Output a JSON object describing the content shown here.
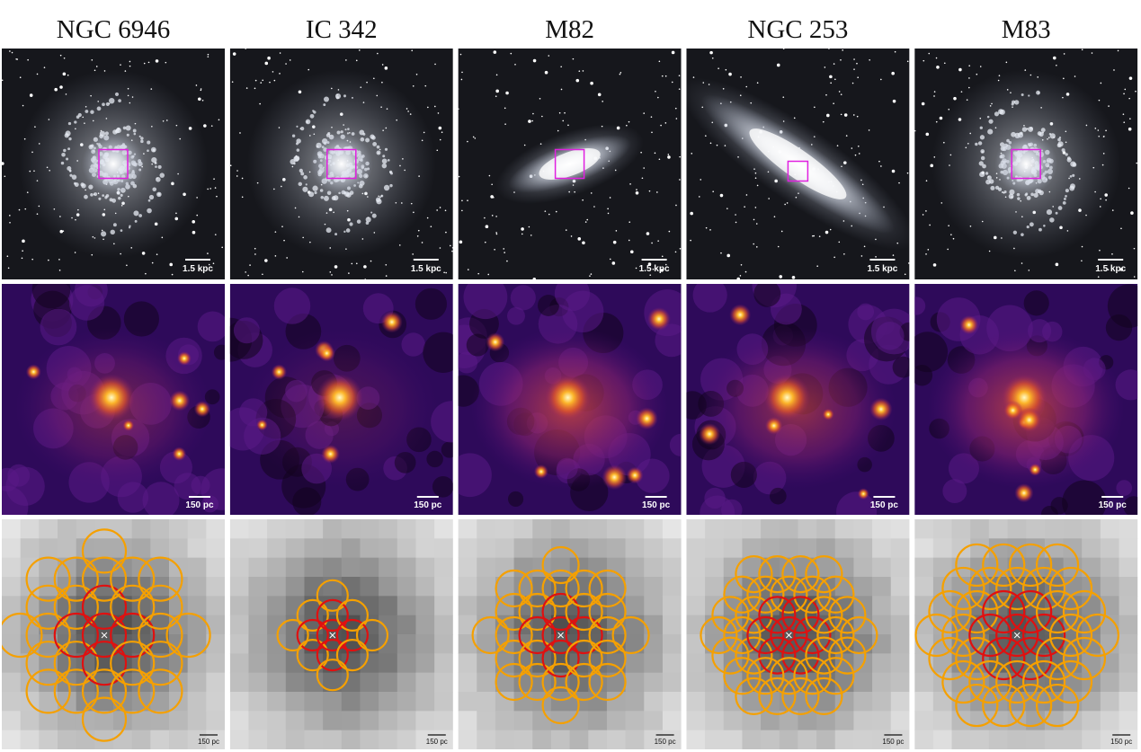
{
  "panels": [
    {
      "name": "NGC 6946",
      "optical_scale": "1.5 kpc",
      "map_scale": "150 pc",
      "grid_scale": "150 pc"
    },
    {
      "name": "IC 342",
      "optical_scale": "1.5 kpc",
      "map_scale": "150 pc",
      "grid_scale": "150 pc"
    },
    {
      "name": "M82",
      "optical_scale": "1.5 kpc",
      "map_scale": "150 pc",
      "grid_scale": "150 pc"
    },
    {
      "name": "NGC 253",
      "optical_scale": "1.5 kpc",
      "map_scale": "150 pc",
      "grid_scale": "150 pc"
    },
    {
      "name": "M83",
      "optical_scale": "1.5 kpc",
      "map_scale": "150 pc",
      "grid_scale": "150 pc"
    }
  ]
}
